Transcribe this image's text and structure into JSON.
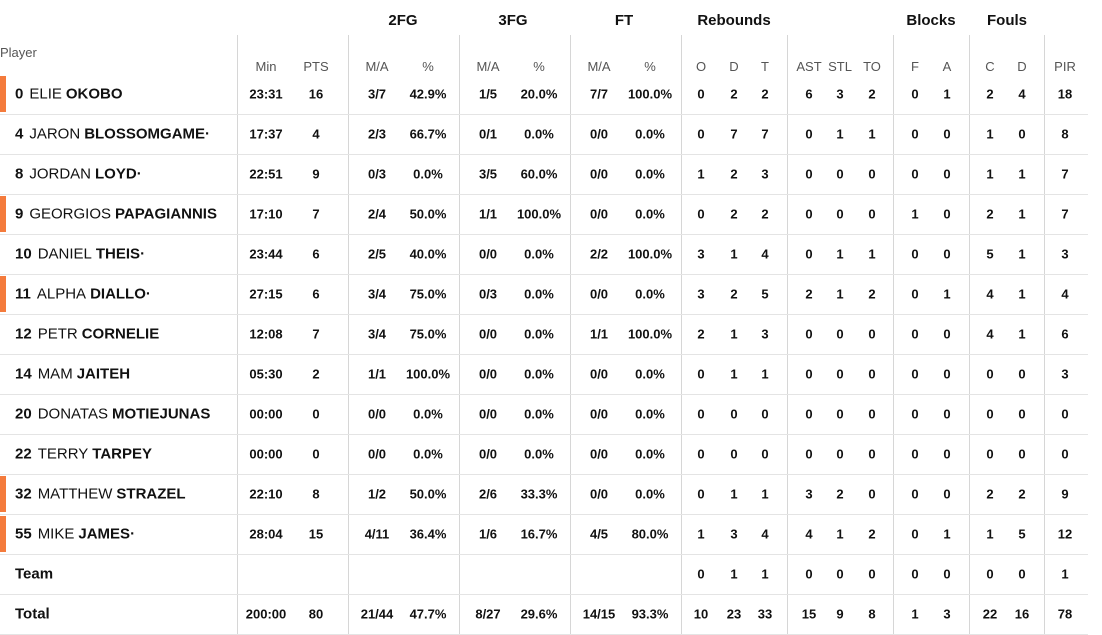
{
  "table": {
    "player_header": "Player",
    "groups": [
      "2FG",
      "3FG",
      "FT",
      "Rebounds",
      "Blocks",
      "Fouls"
    ],
    "columns": [
      "Min",
      "PTS",
      "M/A",
      "%",
      "M/A",
      "%",
      "M/A",
      "%",
      "O",
      "D",
      "T",
      "AST",
      "STL",
      "TO",
      "F",
      "A",
      "C",
      "D",
      "PIR"
    ],
    "rows": [
      {
        "number": "0",
        "first": "ELIE",
        "last": "OKOBO",
        "highlight": true,
        "stats": [
          "23:31",
          "16",
          "3/7",
          "42.9%",
          "1/5",
          "20.0%",
          "7/7",
          "100.0%",
          "0",
          "2",
          "2",
          "6",
          "3",
          "2",
          "0",
          "1",
          "2",
          "4",
          "18"
        ]
      },
      {
        "number": "4",
        "first": "JARON",
        "last": "BLOSSOMGAME",
        "marker": "·",
        "stats": [
          "17:37",
          "4",
          "2/3",
          "66.7%",
          "0/1",
          "0.0%",
          "0/0",
          "0.0%",
          "0",
          "7",
          "7",
          "0",
          "1",
          "1",
          "0",
          "0",
          "1",
          "0",
          "8"
        ]
      },
      {
        "number": "8",
        "first": "JORDAN",
        "last": "LOYD",
        "marker": "·",
        "stats": [
          "22:51",
          "9",
          "0/3",
          "0.0%",
          "3/5",
          "60.0%",
          "0/0",
          "0.0%",
          "1",
          "2",
          "3",
          "0",
          "0",
          "0",
          "0",
          "0",
          "1",
          "1",
          "7"
        ]
      },
      {
        "number": "9",
        "first": "GEORGIOS",
        "last": "PAPAGIANNIS",
        "highlight": true,
        "stats": [
          "17:10",
          "7",
          "2/4",
          "50.0%",
          "1/1",
          "100.0%",
          "0/0",
          "0.0%",
          "0",
          "2",
          "2",
          "0",
          "0",
          "0",
          "1",
          "0",
          "2",
          "1",
          "7"
        ]
      },
      {
        "number": "10",
        "first": "DANIEL",
        "last": "THEIS",
        "marker": "·",
        "stats": [
          "23:44",
          "6",
          "2/5",
          "40.0%",
          "0/0",
          "0.0%",
          "2/2",
          "100.0%",
          "3",
          "1",
          "4",
          "0",
          "1",
          "1",
          "0",
          "0",
          "5",
          "1",
          "3"
        ]
      },
      {
        "number": "11",
        "first": "ALPHA",
        "last": "DIALLO",
        "marker": "·",
        "highlight": true,
        "stats": [
          "27:15",
          "6",
          "3/4",
          "75.0%",
          "0/3",
          "0.0%",
          "0/0",
          "0.0%",
          "3",
          "2",
          "5",
          "2",
          "1",
          "2",
          "0",
          "1",
          "4",
          "1",
          "4"
        ]
      },
      {
        "number": "12",
        "first": "PETR",
        "last": "CORNELIE",
        "stats": [
          "12:08",
          "7",
          "3/4",
          "75.0%",
          "0/0",
          "0.0%",
          "1/1",
          "100.0%",
          "2",
          "1",
          "3",
          "0",
          "0",
          "0",
          "0",
          "0",
          "4",
          "1",
          "6"
        ]
      },
      {
        "number": "14",
        "first": "MAM",
        "last": "JAITEH",
        "stats": [
          "05:30",
          "2",
          "1/1",
          "100.0%",
          "0/0",
          "0.0%",
          "0/0",
          "0.0%",
          "0",
          "1",
          "1",
          "0",
          "0",
          "0",
          "0",
          "0",
          "0",
          "0",
          "3"
        ]
      },
      {
        "number": "20",
        "first": "DONATAS",
        "last": "MOTIEJUNAS",
        "stats": [
          "00:00",
          "0",
          "0/0",
          "0.0%",
          "0/0",
          "0.0%",
          "0/0",
          "0.0%",
          "0",
          "0",
          "0",
          "0",
          "0",
          "0",
          "0",
          "0",
          "0",
          "0",
          "0"
        ]
      },
      {
        "number": "22",
        "first": "TERRY",
        "last": "TARPEY",
        "stats": [
          "00:00",
          "0",
          "0/0",
          "0.0%",
          "0/0",
          "0.0%",
          "0/0",
          "0.0%",
          "0",
          "0",
          "0",
          "0",
          "0",
          "0",
          "0",
          "0",
          "0",
          "0",
          "0"
        ]
      },
      {
        "number": "32",
        "first": "MATTHEW",
        "last": "STRAZEL",
        "highlight": true,
        "stats": [
          "22:10",
          "8",
          "1/2",
          "50.0%",
          "2/6",
          "33.3%",
          "0/0",
          "0.0%",
          "0",
          "1",
          "1",
          "3",
          "2",
          "0",
          "0",
          "0",
          "2",
          "2",
          "9"
        ]
      },
      {
        "number": "55",
        "first": "MIKE",
        "last": "JAMES",
        "marker": "·",
        "highlight": true,
        "stats": [
          "28:04",
          "15",
          "4/11",
          "36.4%",
          "1/6",
          "16.7%",
          "4/5",
          "80.0%",
          "1",
          "3",
          "4",
          "4",
          "1",
          "2",
          "0",
          "1",
          "1",
          "5",
          "12"
        ]
      }
    ],
    "team": {
      "label": "Team",
      "stats": [
        null,
        null,
        null,
        null,
        null,
        null,
        null,
        null,
        "0",
        "1",
        "1",
        "0",
        "0",
        "0",
        "0",
        "0",
        "0",
        "0",
        "1"
      ]
    },
    "total": {
      "label": "Total",
      "stats": [
        "200:00",
        "80",
        "21/44",
        "47.7%",
        "8/27",
        "29.6%",
        "14/15",
        "93.3%",
        "10",
        "23",
        "33",
        "15",
        "9",
        "8",
        "1",
        "3",
        "22",
        "16",
        "78"
      ]
    }
  }
}
